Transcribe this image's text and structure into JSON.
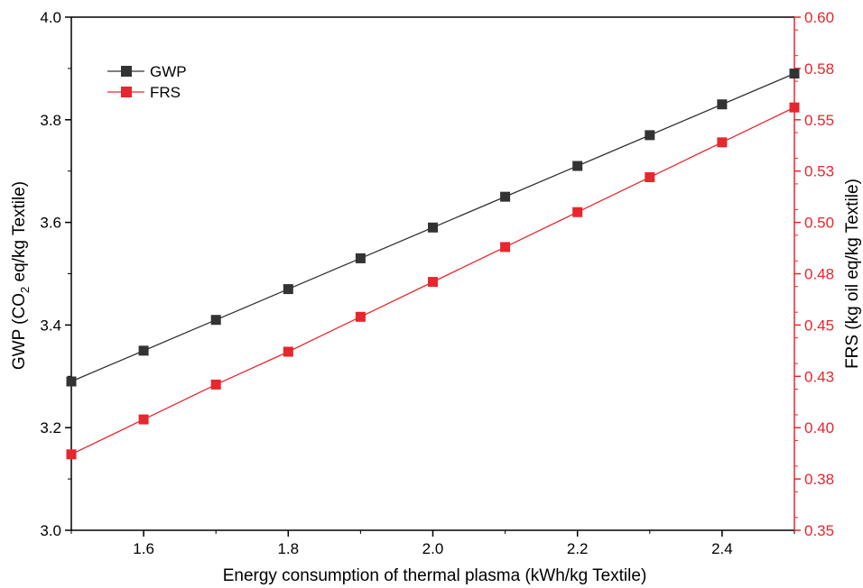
{
  "chart_data": {
    "type": "line",
    "xlabel": "Energy consumption of thermal plasma (kWh/kg Textile)",
    "ylabel_left": {
      "prefix": "GWP (CO",
      "sub": "2",
      "suffix": " eq/kg Textile)"
    },
    "ylabel_right": "FRS (kg oil eq/kg Textile)",
    "xlim": [
      1.5,
      2.5
    ],
    "ylim_left": [
      3.0,
      4.0
    ],
    "ylim_right": [
      0.35,
      0.6
    ],
    "x_ticks": [
      "1.6",
      "1.8",
      "2.0",
      "2.2",
      "2.4"
    ],
    "y_left_ticks": [
      "3.0",
      "3.2",
      "3.4",
      "3.6",
      "3.8",
      "4.0"
    ],
    "y_right_ticks": [
      "0.35",
      "0.38",
      "0.40",
      "0.43",
      "0.45",
      "0.48",
      "0.50",
      "0.53",
      "0.55",
      "0.58",
      "0.60"
    ],
    "legend_position": "top-left",
    "x": [
      1.5,
      1.6,
      1.7,
      1.8,
      1.9,
      2.0,
      2.1,
      2.2,
      2.3,
      2.4,
      2.5
    ],
    "series": [
      {
        "name": "GWP",
        "axis": "left",
        "color": "#333333",
        "marker": "square",
        "values": [
          3.29,
          3.35,
          3.41,
          3.47,
          3.53,
          3.59,
          3.65,
          3.71,
          3.77,
          3.83,
          3.89
        ]
      },
      {
        "name": "FRS",
        "axis": "right",
        "color": "#e8262d",
        "marker": "square",
        "values": [
          0.387,
          0.404,
          0.421,
          0.437,
          0.454,
          0.471,
          0.488,
          0.505,
          0.522,
          0.539,
          0.556
        ]
      }
    ]
  }
}
